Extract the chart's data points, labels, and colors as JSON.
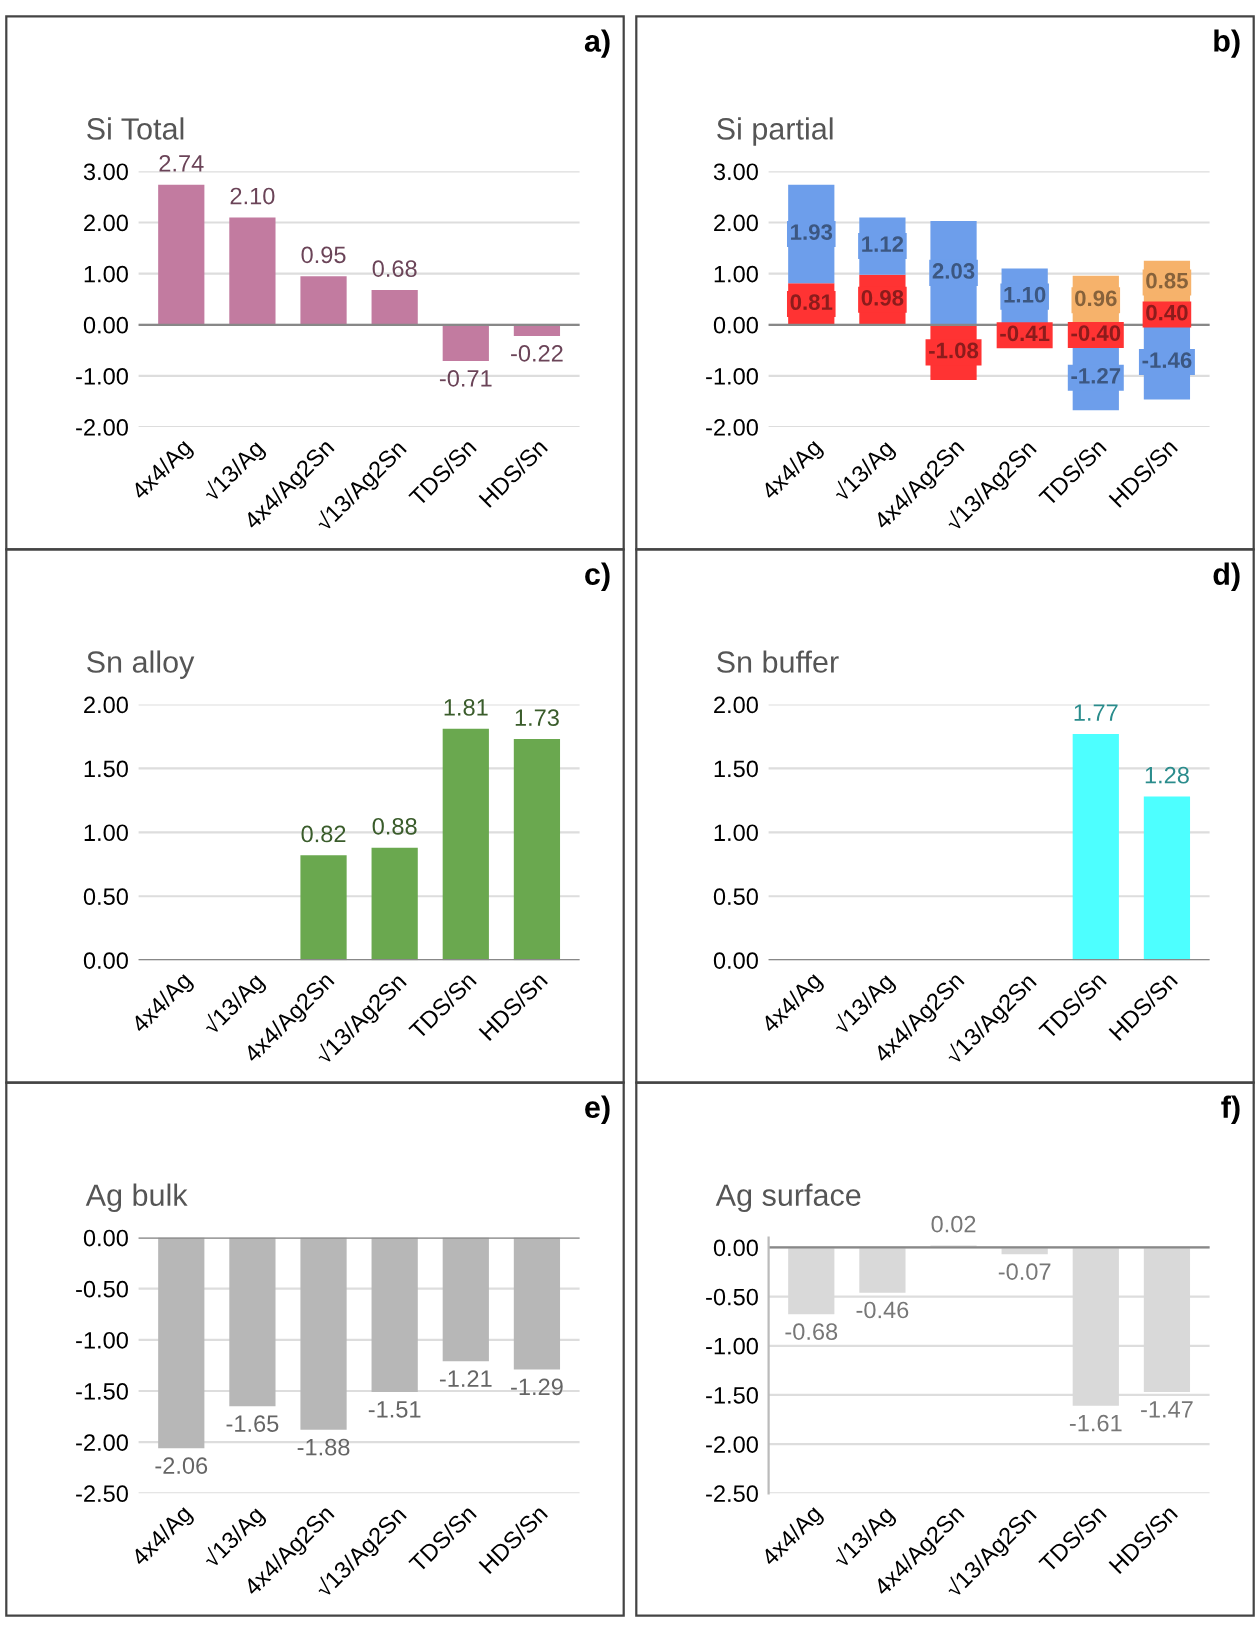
{
  "chart_data": [
    {
      "type": "bar",
      "title": "Si Total",
      "annotations": [
        "a)"
      ],
      "categories": [
        "4x4/Ag",
        "√13/Ag",
        "4x4/Ag2Sn",
        "√13/Ag2Sn",
        "TDS/Sn",
        "HDS/Sn"
      ],
      "series": [
        {
          "color": "#c27ba0",
          "values": [
            2.74,
            2.1,
            0.95,
            0.68,
            -0.71,
            -0.22
          ]
        }
      ],
      "value_labels": [
        "2.74",
        "2.10",
        "0.95",
        "0.68",
        "-0.71",
        "-0.22"
      ],
      "ylim": [
        -2,
        3
      ],
      "yticks": [
        {
          "value": -2,
          "label": "-2.00"
        },
        {
          "value": -1,
          "label": "-1.00"
        },
        {
          "value": 0,
          "label": "0.00"
        },
        {
          "value": 1,
          "label": "1.00"
        },
        {
          "value": 2,
          "label": "2.00"
        },
        {
          "value": 3,
          "label": "3.00"
        }
      ],
      "grid": "y"
    },
    {
      "type": "bar",
      "title": "Si partial",
      "annotations": [
        "b)"
      ],
      "stacked": true,
      "categories": [
        "4x4/Ag",
        "√13/Ag",
        "4x4/Ag2Sn",
        "√13/Ag2Sn",
        "TDS/Sn",
        "HDS/Sn"
      ],
      "series": [
        {
          "color": "#ff3333",
          "values": [
            0.81,
            0.98,
            -1.08,
            -0.41,
            -0.4,
            0.4
          ],
          "value_labels": [
            "0.81",
            "0.98",
            "-1.08",
            "-0.41",
            "-0.40",
            "0.40"
          ]
        },
        {
          "color": "#6d9eeb",
          "values": [
            1.93,
            1.12,
            2.03,
            1.1,
            -1.27,
            -1.46
          ],
          "value_labels": [
            "1.93",
            "1.12",
            "2.03",
            "1.10",
            "-1.27",
            "-1.46"
          ]
        },
        {
          "color": "#f6b26b",
          "values": [
            null,
            null,
            null,
            null,
            0.96,
            0.85
          ],
          "value_labels": [
            null,
            null,
            null,
            null,
            "0.96",
            "0.85"
          ]
        }
      ],
      "ylim": [
        -2,
        3
      ],
      "yticks": [
        {
          "value": -2,
          "label": "-2.00"
        },
        {
          "value": -1,
          "label": "-1.00"
        },
        {
          "value": 0,
          "label": "0.00"
        },
        {
          "value": 1,
          "label": "1.00"
        },
        {
          "value": 2,
          "label": "2.00"
        },
        {
          "value": 3,
          "label": "3.00"
        }
      ],
      "grid": "y"
    },
    {
      "type": "bar",
      "title": "Sn alloy",
      "annotations": [
        "c)"
      ],
      "categories": [
        "4x4/Ag",
        "√13/Ag",
        "4x4/Ag2Sn",
        "√13/Ag2Sn",
        "TDS/Sn",
        "HDS/Sn"
      ],
      "series": [
        {
          "color": "#6aa84f",
          "values": [
            null,
            null,
            0.82,
            0.88,
            1.81,
            1.73
          ]
        }
      ],
      "data_labels": true,
      "ylim": [
        0,
        2
      ],
      "yticks": [
        {
          "value": 0,
          "label": "0.00"
        },
        {
          "value": 0.5,
          "label": "0.50"
        },
        {
          "value": 1,
          "label": "1.00"
        },
        {
          "value": 1.5,
          "label": "1.50"
        },
        {
          "value": 2,
          "label": "2.00"
        }
      ],
      "grid": "y"
    },
    {
      "type": "bar",
      "title": "Sn buffer",
      "annotations": [
        "d)"
      ],
      "categories": [
        "4x4/Ag",
        "√13/Ag",
        "4x4/Ag2Sn",
        "√13/Ag2Sn",
        "TDS/Sn",
        "HDS/Sn"
      ],
      "series": [
        {
          "color": "#4dffff",
          "values": [
            null,
            null,
            null,
            null,
            1.77,
            1.28
          ]
        }
      ],
      "data_labels": true,
      "ylim": [
        0,
        2
      ],
      "yticks": [
        {
          "value": 0,
          "label": "0.00"
        },
        {
          "value": 0.5,
          "label": "0.50"
        },
        {
          "value": 1,
          "label": "1.00"
        },
        {
          "value": 1.5,
          "label": "1.50"
        },
        {
          "value": 2,
          "label": "2.00"
        }
      ],
      "grid": "y"
    },
    {
      "type": "bar",
      "title": "Ag bulk",
      "annotations": [
        "e)"
      ],
      "categories": [
        "4x4/Ag",
        "√13/Ag",
        "4x4/Ag2Sn",
        "√13/Ag2Sn",
        "TDS/Sn",
        "HDS/Sn"
      ],
      "series": [
        {
          "color": "#b7b7b7",
          "values": [
            -2.06,
            -1.65,
            -1.88,
            -1.51,
            -1.21,
            -1.29
          ]
        }
      ],
      "data_labels": true,
      "ylim": [
        -2.5,
        0
      ],
      "yticks": [
        {
          "value": -2.5,
          "label": "-2.50"
        },
        {
          "value": -2,
          "label": "-2.00"
        },
        {
          "value": -1.5,
          "label": "-1.50"
        },
        {
          "value": -1,
          "label": "-1.00"
        },
        {
          "value": -0.5,
          "label": "-0.50"
        },
        {
          "value": 0,
          "label": "0.00"
        }
      ],
      "grid": "y"
    },
    {
      "type": "bar",
      "title": "Ag surface",
      "annotations": [
        "f)"
      ],
      "categories": [
        "4x4/Ag",
        "√13/Ag",
        "4x4/Ag2Sn",
        "√13/Ag2Sn",
        "TDS/Sn",
        "HDS/Sn"
      ],
      "series": [
        {
          "color": "#d9d9d9",
          "values": [
            -0.68,
            -0.46,
            0.02,
            -0.07,
            -1.61,
            -1.47
          ]
        }
      ],
      "data_labels": true,
      "ylim": [
        -2.5,
        0.1
      ],
      "yticks": [
        {
          "value": -2.5,
          "label": "-2.50"
        },
        {
          "value": -2,
          "label": "-2.00"
        },
        {
          "value": -1.5,
          "label": "-1.50"
        },
        {
          "value": -1,
          "label": "-1.00"
        },
        {
          "value": -0.5,
          "label": "-0.50"
        },
        {
          "value": 0,
          "label": "0.00"
        }
      ],
      "grid": "y"
    }
  ]
}
